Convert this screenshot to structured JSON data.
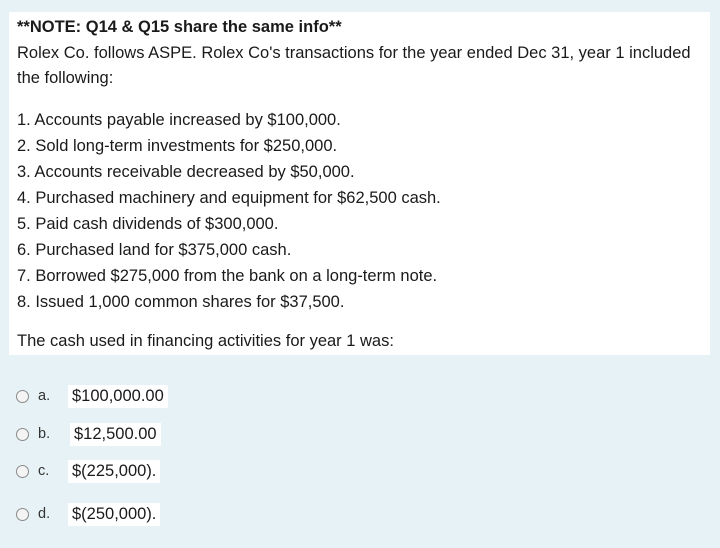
{
  "question": {
    "note": "**NOTE: Q14 & Q15 share the same info**",
    "intro_line1": "Rolex Co. follows ASPE. Rolex Co's transactions for the year ended Dec 31, year 1 included",
    "intro_line2": "the following:",
    "items": [
      "1. Accounts payable increased by $100,000.",
      "2. Sold long-term investments for $250,000.",
      "3. Accounts receivable decreased by $50,000.",
      "4. Purchased machinery and equipment for $62,500 cash.",
      "5. Paid cash dividends of $300,000.",
      "6. Purchased land for $375,000 cash.",
      "7. Borrowed $275,000 from the bank on a long-term note.",
      "8. Issued 1,000 common shares for $37,500."
    ],
    "prompt": "The cash used in financing activities for year 1 was:"
  },
  "options": [
    {
      "letter": "a.",
      "text": "$100,000.00"
    },
    {
      "letter": "b.",
      "text": "$12,500.00"
    },
    {
      "letter": "c.",
      "text": "$(225,000)."
    },
    {
      "letter": "d.",
      "text": "$(250,000)."
    }
  ]
}
